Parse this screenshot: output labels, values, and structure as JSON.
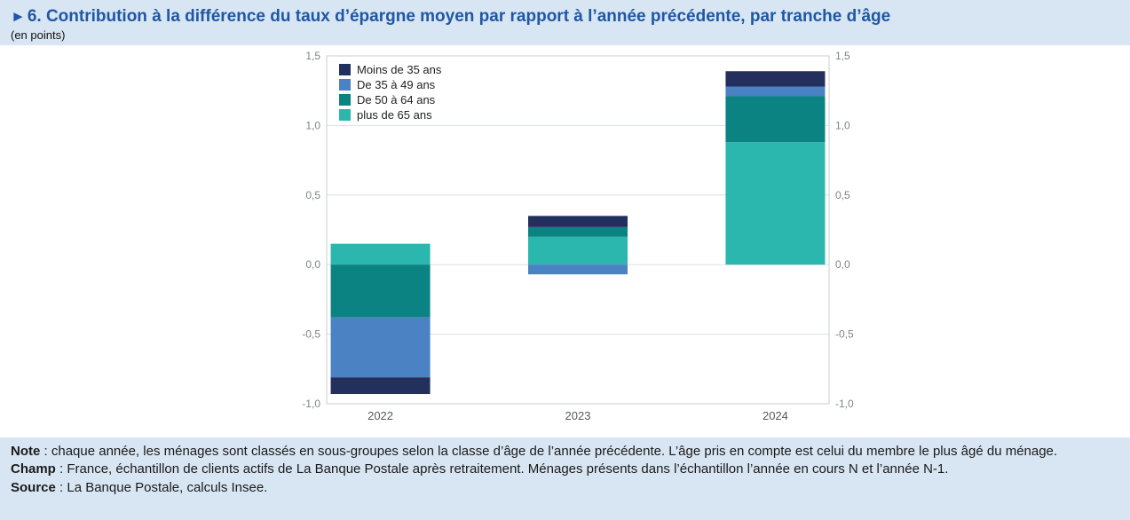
{
  "page": {
    "title_arrow": "►",
    "title": "6. Contribution à la différence du taux d’épargne moyen par rapport à l’année précédente, par tranche d’âge",
    "subtitle": "(en points)"
  },
  "chart_data": {
    "type": "bar",
    "stacked": true,
    "title": "",
    "xlabel": "",
    "ylabel": "",
    "categories": [
      "2022",
      "2023",
      "2024"
    ],
    "series": [
      {
        "name": "Moins de 35 ans",
        "color": "#232f5d",
        "values": [
          -0.12,
          0.08,
          0.11
        ]
      },
      {
        "name": "De 35 à 49 ans",
        "color": "#4a82c4",
        "values": [
          -0.43,
          -0.07,
          0.07
        ]
      },
      {
        "name": "De 50 à 64 ans",
        "color": "#0a8382",
        "values": [
          -0.38,
          0.07,
          0.33
        ]
      },
      {
        "name": "plus de 65 ans",
        "color": "#2bb6ae",
        "values": [
          0.15,
          0.2,
          0.88
        ]
      }
    ],
    "ylim": [
      -1.0,
      1.5
    ],
    "ytick_values": [
      -1.0,
      -0.5,
      0.0,
      0.5,
      1.0,
      1.5
    ],
    "yticks": [
      "-1,0",
      "-0,5",
      "0,0",
      "0,5",
      "1,0",
      "1,5"
    ],
    "grid": true,
    "legend_position": "top-left",
    "stacking_order": "reversed"
  },
  "notes": [
    {
      "label": "Note",
      "text": " : chaque année, les ménages sont classés en sous-groupes selon la classe d’âge de l’année précédente. L’âge pris en compte est celui du membre le plus âgé du ménage."
    },
    {
      "label": "Champ",
      "text": " : France, échantillon de clients actifs de La Banque Postale après retraitement. Ménages présents dans l’échantillon l’année en cours N et l’année N-1."
    },
    {
      "label": "Source",
      "text": " : La Banque Postale, calculs Insee."
    }
  ]
}
